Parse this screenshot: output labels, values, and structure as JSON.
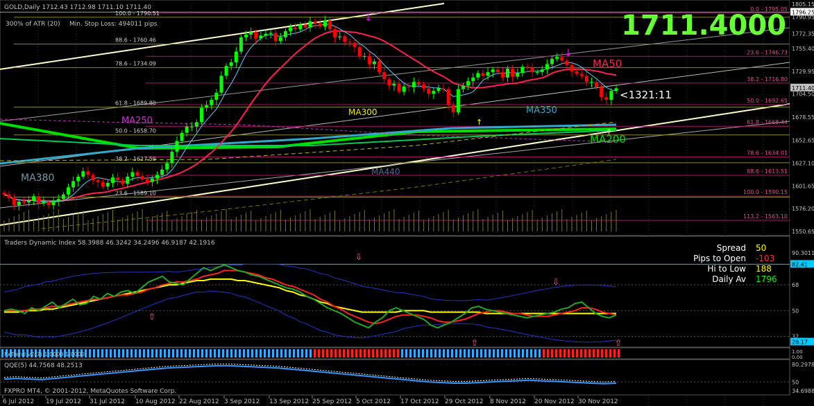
{
  "header": {
    "symbol_line": "GOLD,Daily  1712.43 1712.98 1711.10 1711.40",
    "atr_label": "300% of ATR (20)",
    "stop_loss_label": "Min. Stop Loss:  494011 pips",
    "big_price": "1711.4000",
    "countdown": "<1321:11"
  },
  "colors": {
    "background": "#000000",
    "bull": "#00ff00",
    "bear": "#ff0000",
    "grid": "#404040",
    "fib": "#cc0077",
    "fib_yellow": "#999900",
    "axis_text": "#c0c0c0"
  },
  "main_axis": {
    "ticks": [
      "1805.15",
      "1796.25",
      "1790.95",
      "1772.35",
      "1755.40",
      "1729.95",
      "1711.40",
      "1704.50",
      "1678.55",
      "1652.65",
      "1627.10",
      "1601.65",
      "1576.20",
      "1550.65"
    ],
    "price_tag": "1711.40",
    "top_tag": "1796.25"
  },
  "fib_levels_left": [
    {
      "label": "100.0 - 1790.51",
      "price": 1790.51
    },
    {
      "label": "88.6 - 1760.46",
      "price": 1760.46
    },
    {
      "label": "78.6 - 1734.09",
      "price": 1734.09
    },
    {
      "label": "61.8 - 1689.80",
      "price": 1689.8
    },
    {
      "label": "50.0 - 1658.70",
      "price": 1658.7
    },
    {
      "label": "38.2 - 1627.59",
      "price": 1627.59
    },
    {
      "label": "23.6 - 1589.10",
      "price": 1589.1
    }
  ],
  "fib_levels_right": [
    {
      "label": "0.0 - 1795.05",
      "price": 1795.05
    },
    {
      "label": "23.6 - 1746.73",
      "price": 1746.73
    },
    {
      "label": "38.2 - 1716.80",
      "price": 1716.8
    },
    {
      "label": "50.0 - 1692.65",
      "price": 1692.65
    },
    {
      "label": "61.8 - 1668.44",
      "price": 1668.44
    },
    {
      "label": "78.6 - 1634.01",
      "price": 1634.01
    },
    {
      "label": "88.6 - 1613.51",
      "price": 1613.51
    },
    {
      "label": "100.0 - 1590.15",
      "price": 1590.15
    },
    {
      "label": "113.2 - 1563.10",
      "price": 1563.1
    }
  ],
  "ma_labels": [
    "MA380",
    "MA250",
    "MA300",
    "MA440",
    "MA350",
    "MA50",
    "MA200"
  ],
  "tdi": {
    "title": "Traders Dynamic Index 58.3988 46.3242 34.2496 46.9187 42.1916",
    "axis": [
      "90.3011",
      "82.41",
      "68",
      "50",
      "32",
      "28.17"
    ],
    "info": [
      {
        "label": "Spread",
        "value": "50",
        "color": "#ffff00"
      },
      {
        "label": "Pips to Open",
        "value": "-103",
        "color": "#ff3030"
      },
      {
        "label": "Hi to Low",
        "value": "188",
        "color": "#ffff00"
      },
      {
        "label": "Daily Av",
        "value": "1796",
        "color": "#00ff00"
      }
    ]
  },
  "fxtrend": {
    "title": "FxTrend v2(7) 1.0000 1.0000",
    "axis": [
      "1.00",
      "0.00"
    ]
  },
  "qqe": {
    "title": "QQE(5) 44.7568 48.2513",
    "axis": [
      "80.2978",
      "50",
      "34.6988"
    ]
  },
  "footer": {
    "copyright": "FXPRO MT4, © 2001-2012, MetaQuotes Software Corp."
  },
  "x_axis": {
    "labels": [
      "6 Jul 2012",
      "19 Jul 2012",
      "31 Jul 2012",
      "10 Aug 2012",
      "22 Aug 2012",
      "3 Sep 2012",
      "13 Sep 2012",
      "25 Sep 2012",
      "5 Oct 2012",
      "17 Oct 2012",
      "29 Oct 2012",
      "8 Nov 2012",
      "20 Nov 2012",
      "30 Nov 2012"
    ]
  },
  "chart_data": {
    "type": "candlestick",
    "symbol": "GOLD",
    "timeframe": "Daily",
    "ohlc_last": {
      "open": 1712.43,
      "high": 1712.98,
      "low": 1711.1,
      "close": 1711.4
    },
    "ylim": [
      1550.65,
      1805.15
    ],
    "close_series": [
      1592,
      1588,
      1580,
      1584,
      1583,
      1585,
      1590,
      1582,
      1584,
      1580,
      1585,
      1587,
      1592,
      1600,
      1607,
      1612,
      1618,
      1614,
      1608,
      1606,
      1601,
      1605,
      1611,
      1608,
      1604,
      1612,
      1617,
      1613,
      1609,
      1606,
      1610,
      1614,
      1620,
      1627,
      1640,
      1652,
      1661,
      1668,
      1668,
      1673,
      1689,
      1692,
      1698,
      1706,
      1725,
      1736,
      1740,
      1752,
      1768,
      1771,
      1774,
      1767,
      1770,
      1772,
      1773,
      1764,
      1768,
      1775,
      1779,
      1777,
      1782,
      1779,
      1786,
      1784,
      1780,
      1787,
      1777,
      1768,
      1769,
      1763,
      1762,
      1757,
      1747,
      1747,
      1738,
      1741,
      1729,
      1721,
      1714,
      1716,
      1707,
      1713,
      1712,
      1718,
      1715,
      1711,
      1705,
      1708,
      1711,
      1710,
      1692,
      1684,
      1710,
      1714,
      1719,
      1723,
      1728,
      1725,
      1729,
      1732,
      1729,
      1723,
      1733,
      1724,
      1728,
      1735,
      1734,
      1729,
      1729,
      1732,
      1738,
      1744,
      1746,
      1742,
      1737,
      1730,
      1727,
      1725,
      1718,
      1718,
      1712,
      1701,
      1698,
      1708,
      1711
    ],
    "tdi_rsi": [
      50,
      51,
      50,
      48,
      52,
      50,
      53,
      56,
      52,
      55,
      58,
      54,
      55,
      60,
      58,
      62,
      60,
      63,
      64,
      62,
      66,
      70,
      72,
      74,
      70,
      69,
      68,
      72,
      76,
      80,
      78,
      80,
      82,
      80,
      78,
      77,
      75,
      74,
      72,
      70,
      68,
      66,
      65,
      63,
      60,
      58,
      55,
      52,
      50,
      48,
      45,
      42,
      40,
      38,
      42,
      45,
      50,
      52,
      50,
      48,
      46,
      44,
      40,
      38,
      40,
      42,
      45,
      48,
      52,
      53,
      51,
      50,
      49,
      48,
      47,
      46,
      45,
      46,
      47,
      48,
      49,
      51,
      52,
      55,
      56,
      52,
      48,
      46,
      45,
      47
    ],
    "tdi_signal": [
      50,
      50,
      50,
      50,
      51,
      51,
      52,
      53,
      53,
      54,
      55,
      56,
      57,
      58,
      58,
      59,
      60,
      61,
      61,
      62,
      63,
      65,
      66,
      68,
      69,
      70,
      70,
      71,
      72,
      74,
      75,
      76,
      78,
      78,
      78,
      77,
      76,
      75,
      73,
      72,
      70,
      68,
      67,
      65,
      63,
      61,
      58,
      56,
      53,
      51,
      48,
      46,
      44,
      42,
      41,
      42,
      44,
      46,
      47,
      47,
      47,
      46,
      45,
      43,
      42,
      42,
      43,
      44,
      46,
      48,
      49,
      50,
      50,
      49,
      48,
      48,
      47,
      46,
      46,
      46,
      47,
      48,
      49,
      50,
      52,
      52,
      51,
      49,
      48,
      47
    ],
    "tdi_midline": [
      49,
      49,
      49,
      50,
      50,
      50,
      51,
      51,
      52,
      53,
      54,
      55,
      56,
      57,
      58,
      59,
      60,
      61,
      62,
      63,
      64,
      65,
      66,
      67,
      68,
      68,
      69,
      70,
      71,
      71,
      72,
      72,
      72,
      72,
      71,
      71,
      70,
      69,
      68,
      67,
      66,
      64,
      63,
      61,
      60,
      58,
      56,
      55,
      53,
      52,
      51,
      50,
      49,
      49,
      49,
      49,
      49,
      49,
      50,
      50,
      50,
      50,
      49,
      49,
      49,
      49,
      49,
      49,
      49,
      49,
      48,
      48,
      48,
      48,
      48,
      48,
      48,
      48,
      48,
      48,
      48,
      48,
      48,
      48,
      48,
      48,
      48,
      48,
      48,
      48
    ],
    "qqe_rsi": [
      55,
      56,
      55,
      54,
      56,
      58,
      60,
      62,
      64,
      66,
      68,
      70,
      72,
      74,
      75,
      76,
      77,
      78,
      78,
      77,
      76,
      75,
      74,
      72,
      70,
      68,
      66,
      64,
      62,
      60,
      58,
      56,
      54,
      52,
      50,
      49,
      48,
      48,
      49,
      50,
      51,
      52,
      53,
      52,
      51,
      50,
      49,
      48,
      47,
      48
    ],
    "categories_note": "",
    "xlabel": "",
    "ylabel": "",
    "grid": true
  }
}
